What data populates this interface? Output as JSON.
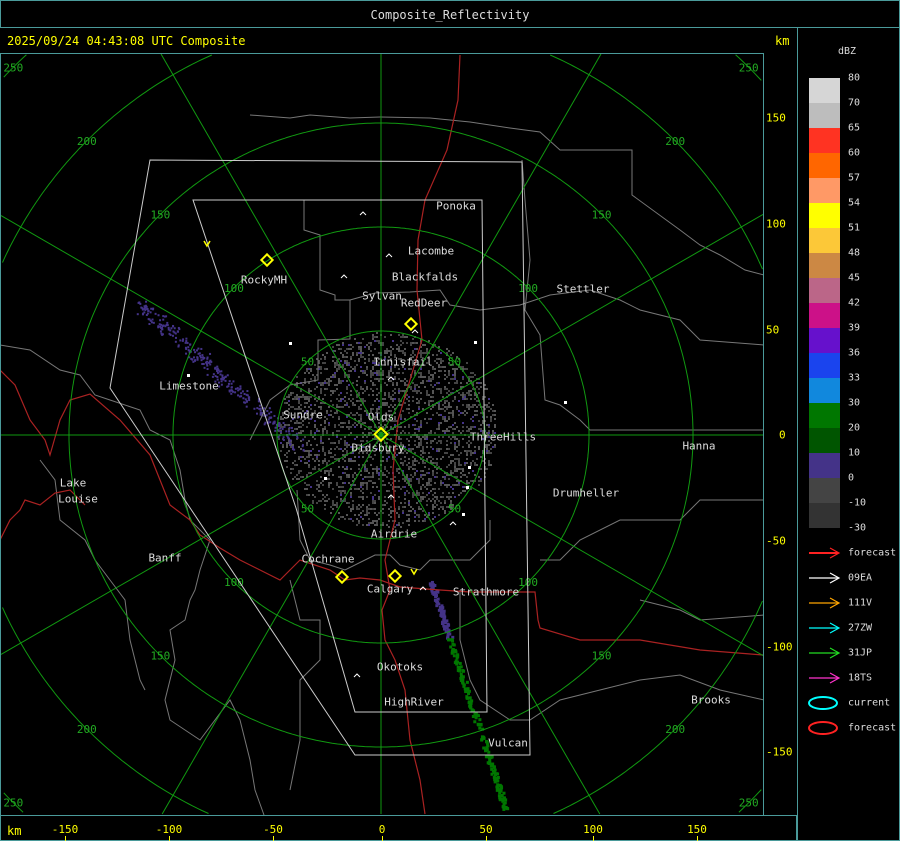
{
  "header": {
    "title": "Composite_Reflectivity",
    "timestamp": "2025/09/24 04:43:08 UTC Composite",
    "unit_top": "km"
  },
  "axis": {
    "unit_bottom": "km",
    "x_ticks": [
      "-150",
      "-100",
      "-50",
      "0",
      "50",
      "100",
      "150"
    ],
    "y_ticks": [
      "150",
      "100",
      "50",
      "0",
      "-50",
      "-100",
      "-150"
    ]
  },
  "range_rings_km": [
    "50",
    "100",
    "150",
    "200",
    "250"
  ],
  "towns": [
    "Ponoka",
    "Lacombe",
    "Blackfalds",
    "Sylvan",
    "RedDeer",
    "RockyMH",
    "Stettler",
    "Innisfail",
    "Limestone",
    "Sundre",
    "Olds",
    "Didsbury",
    "ThreeHills",
    "Hanna",
    "Drumheller",
    "Lake",
    "Louise",
    "Airdrie",
    "Banff",
    "Cochrane",
    "Calgary",
    "Strathmore",
    "Okotoks",
    "HighRiver",
    "Brooks",
    "Vulcan"
  ],
  "legend": {
    "title": "dBZ",
    "labels": [
      "80",
      "70",
      "65",
      "60",
      "57",
      "54",
      "51",
      "48",
      "45",
      "42",
      "39",
      "36",
      "33",
      "30",
      "20",
      "10",
      "0",
      "-10",
      "-30"
    ],
    "colors": [
      "#d6d6d6",
      "#bdbdbd",
      "#ff3322",
      "#ff6600",
      "#ff9966",
      "#ffff00",
      "#fcc838",
      "#cc8844",
      "#bb6688",
      "#cc1188",
      "#6611cc",
      "#1a44ee",
      "#1188dd",
      "#007700",
      "#005500",
      "#443388",
      "#444444",
      "#333333"
    ]
  },
  "tracks": [
    {
      "label": "forecast",
      "color": "#ff2222",
      "icon": "arrow"
    },
    {
      "label": "09EA",
      "color": "#ffffff",
      "icon": "arrow"
    },
    {
      "label": "111V",
      "color": "#ffa500",
      "icon": "arrow"
    },
    {
      "label": "27ZW",
      "color": "#00ffff",
      "icon": "arrow"
    },
    {
      "label": "31JP",
      "color": "#22dd22",
      "icon": "arrow"
    },
    {
      "label": "18TS",
      "color": "#ff33cc",
      "icon": "arrow"
    },
    {
      "label": "current",
      "color": "#00ffff",
      "icon": "ellipse"
    },
    {
      "label": "forecast",
      "color": "#ff2222",
      "icon": "ellipse"
    }
  ]
}
